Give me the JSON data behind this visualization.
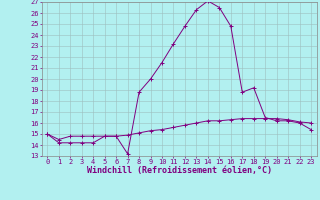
{
  "background_color": "#b2f0f0",
  "line_color": "#800080",
  "grid_color": "#9dbfbf",
  "ylim": [
    13,
    27
  ],
  "xlim": [
    -0.5,
    23.5
  ],
  "yticks": [
    13,
    14,
    15,
    16,
    17,
    18,
    19,
    20,
    21,
    22,
    23,
    24,
    25,
    26,
    27
  ],
  "xticks": [
    0,
    1,
    2,
    3,
    4,
    5,
    6,
    7,
    8,
    9,
    10,
    11,
    12,
    13,
    14,
    15,
    16,
    17,
    18,
    19,
    20,
    21,
    22,
    23
  ],
  "xlabel": "Windchill (Refroidissement éolien,°C)",
  "series1_x": [
    0,
    1,
    2,
    3,
    4,
    5,
    6,
    7,
    8,
    9,
    10,
    11,
    12,
    13,
    14,
    15,
    16,
    17,
    18,
    19,
    20,
    21,
    22,
    23
  ],
  "series1_y": [
    15.0,
    14.2,
    14.2,
    14.2,
    14.2,
    14.8,
    14.8,
    13.2,
    18.8,
    20.0,
    21.5,
    23.2,
    24.8,
    26.3,
    27.1,
    26.5,
    24.8,
    18.8,
    19.2,
    16.5,
    16.2,
    16.2,
    16.0,
    15.4
  ],
  "series2_x": [
    0,
    1,
    2,
    3,
    4,
    5,
    6,
    7,
    8,
    9,
    10,
    11,
    12,
    13,
    14,
    15,
    16,
    17,
    18,
    19,
    20,
    21,
    22,
    23
  ],
  "series2_y": [
    15.0,
    14.5,
    14.8,
    14.8,
    14.8,
    14.8,
    14.8,
    14.9,
    15.1,
    15.3,
    15.4,
    15.6,
    15.8,
    16.0,
    16.2,
    16.2,
    16.3,
    16.4,
    16.4,
    16.4,
    16.4,
    16.3,
    16.1,
    16.0
  ],
  "tick_fontsize": 5,
  "xlabel_fontsize": 6,
  "linewidth": 0.7,
  "markersize": 2.5,
  "markeredgewidth": 0.7
}
